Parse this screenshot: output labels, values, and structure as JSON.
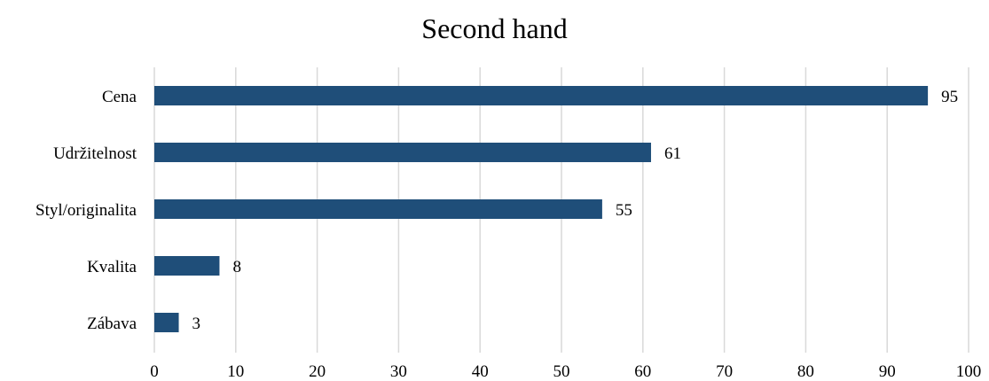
{
  "chart_data": {
    "type": "bar",
    "orientation": "horizontal",
    "title": "Second hand",
    "xlabel": "",
    "ylabel": "",
    "categories": [
      "Cena",
      "Udržitelnost",
      "Styl/originalita",
      "Kvalita",
      "Zábava"
    ],
    "values": [
      95,
      61,
      55,
      8,
      3
    ],
    "xlim": [
      0,
      100
    ],
    "xticks": [
      0,
      10,
      20,
      30,
      40,
      50,
      60,
      70,
      80,
      90,
      100
    ],
    "grid": "vertical",
    "legend": "none",
    "bar_color": "#1f4e79",
    "grid_color": "#d9d9d9"
  }
}
